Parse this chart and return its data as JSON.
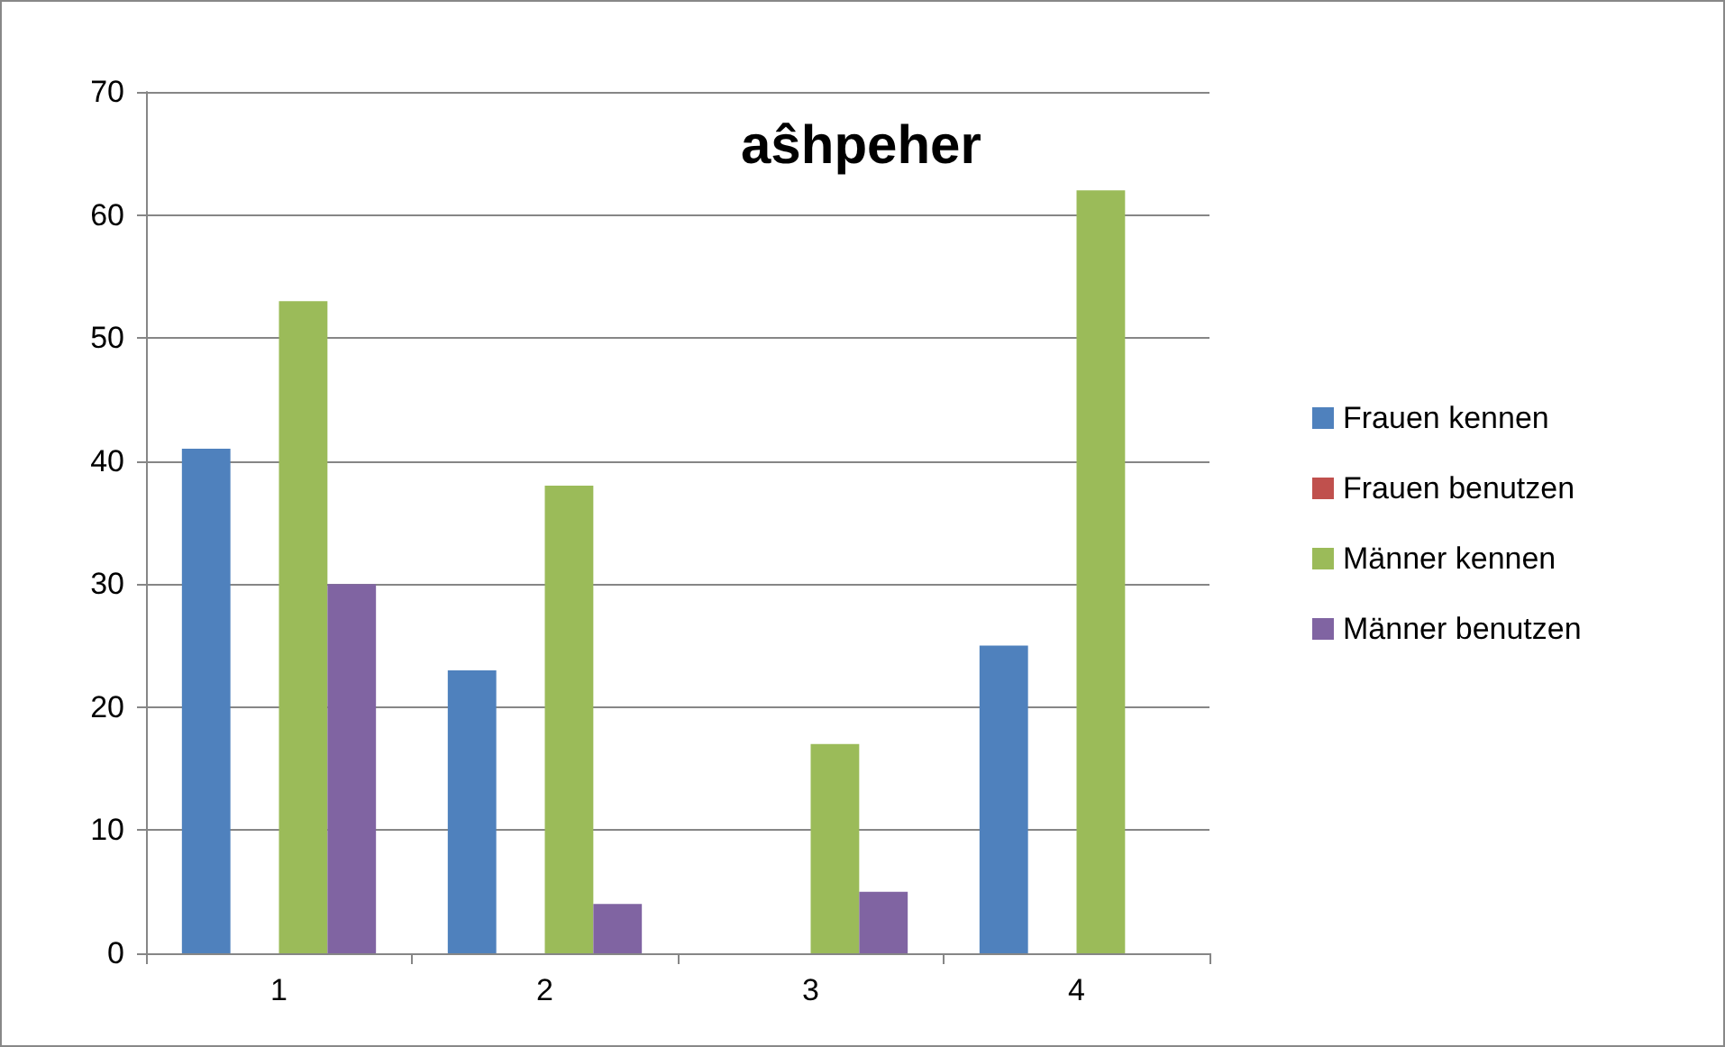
{
  "chart_data": {
    "type": "bar",
    "title": "aŝhpeher",
    "categories": [
      "1",
      "2",
      "3",
      "4"
    ],
    "series": [
      {
        "name": "Frauen kennen",
        "color": "#4f81bd",
        "values": [
          41,
          23,
          0,
          25
        ]
      },
      {
        "name": "Frauen benutzen",
        "color": "#c0504d",
        "values": [
          0,
          0,
          0,
          0
        ]
      },
      {
        "name": "Männer kennen",
        "color": "#9bbb59",
        "values": [
          53,
          38,
          17,
          62
        ]
      },
      {
        "name": "Männer benutzen",
        "color": "#8064a2",
        "values": [
          30,
          4,
          5,
          0
        ]
      }
    ],
    "ylim": [
      0,
      70
    ],
    "yticks": [
      0,
      10,
      20,
      30,
      40,
      50,
      60,
      70
    ],
    "grid": "y",
    "legend": "right"
  }
}
